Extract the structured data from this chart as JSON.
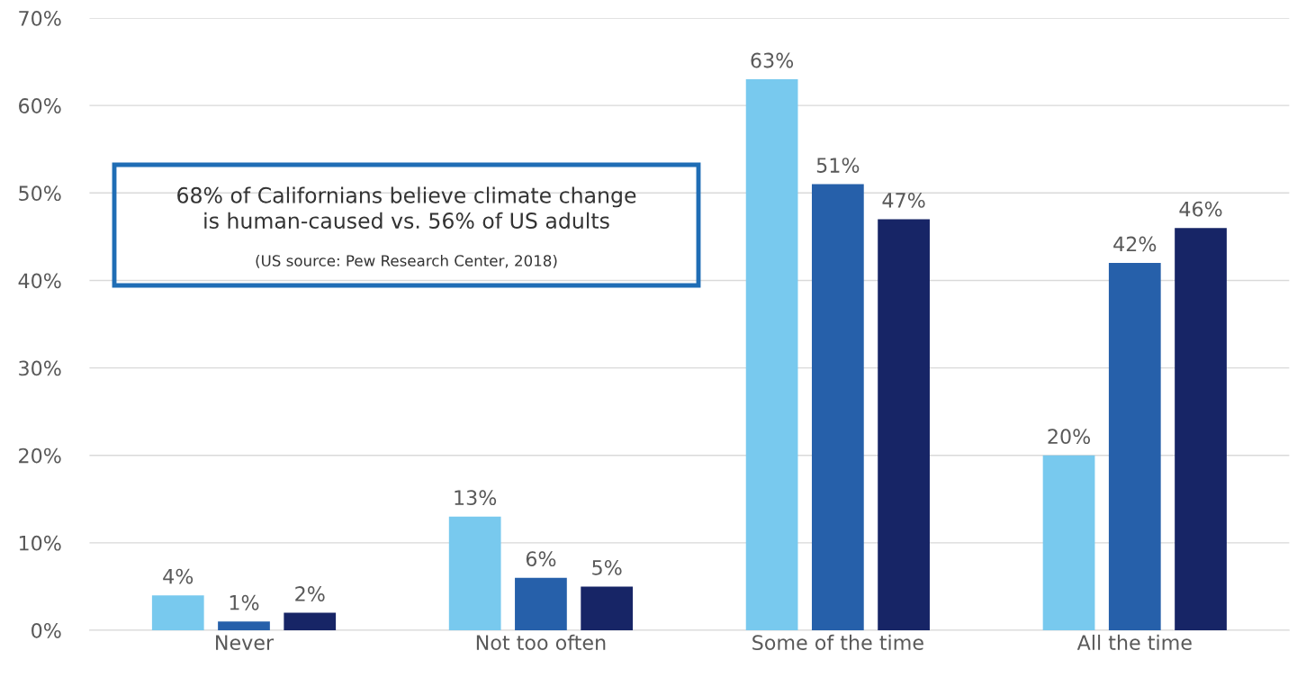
{
  "chart_data": {
    "type": "bar",
    "categories": [
      "Never",
      "Not too often",
      "Some of the time",
      "All the time"
    ],
    "series": [
      {
        "color": "#78c9ee",
        "values": [
          4,
          13,
          63,
          20
        ],
        "value_labels": [
          "4%",
          "13%",
          "63%",
          "20%"
        ]
      },
      {
        "color": "#2660aa",
        "values": [
          1,
          6,
          51,
          42
        ],
        "value_labels": [
          "1%",
          "6%",
          "51%",
          "42%"
        ]
      },
      {
        "color": "#172566",
        "values": [
          2,
          5,
          47,
          46
        ],
        "value_labels": [
          "2%",
          "5%",
          "47%",
          "46%"
        ]
      }
    ],
    "ylim": [
      0,
      70
    ],
    "yticks": [
      {
        "value": 0,
        "label": "0%"
      },
      {
        "value": 10,
        "label": "10%"
      },
      {
        "value": 20,
        "label": "20%"
      },
      {
        "value": 30,
        "label": "30%"
      },
      {
        "value": 40,
        "label": "40%"
      },
      {
        "value": 50,
        "label": "50%"
      },
      {
        "value": 60,
        "label": "60%"
      },
      {
        "value": 70,
        "label": "70%"
      }
    ],
    "grid": "y",
    "annotations": [
      "68% of Californians believe climate change\nis human-caused vs. 56% of US adults",
      "(US source: Pew Research Center, 2018)"
    ]
  }
}
